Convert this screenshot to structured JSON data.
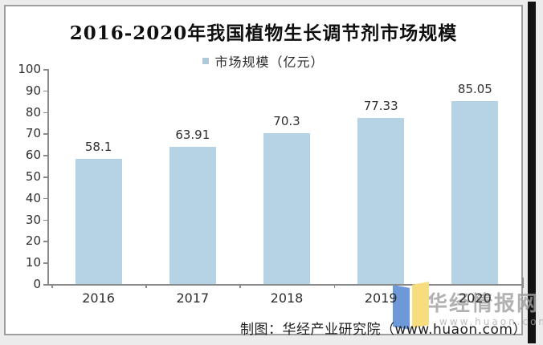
{
  "page": {
    "title": "2016-2020年我国植物生长调节剂市场规模",
    "legend": {
      "label": "市场规模（亿元）"
    },
    "credit": "制图：华经产业研究院（www.huaon.com）",
    "watermark": {
      "text": "华经情报网",
      "url": "www.huaon.com"
    }
  },
  "chart_data": {
    "type": "bar",
    "title": "2016-2020年我国植物生长调节剂市场规模",
    "legend": [
      "市场规模（亿元）"
    ],
    "legend_position": "top",
    "categories": [
      "2016",
      "2017",
      "2018",
      "2019",
      "2020"
    ],
    "values": [
      58.1,
      63.91,
      70.3,
      77.33,
      85.05
    ],
    "value_labels": [
      "58.1",
      "63.91",
      "70.3",
      "77.33",
      "85.05"
    ],
    "unit": "亿元",
    "ylim": [
      0,
      100
    ],
    "ytick_step": 10,
    "grid": false,
    "bar_color": "#b6d3e5",
    "axis_color": "#8a8a8a",
    "label_color": "#2f2f2f"
  }
}
